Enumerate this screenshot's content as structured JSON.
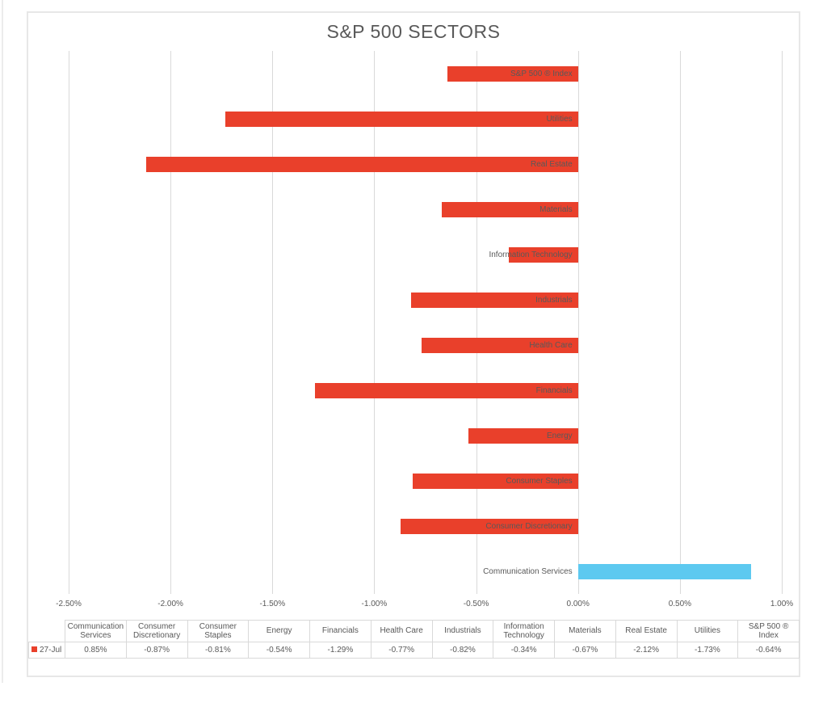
{
  "chart_data": {
    "type": "bar",
    "orientation": "horizontal",
    "title": "S&P 500 SECTORS",
    "xlabel": "",
    "ylabel": "",
    "xlim": [
      -2.5,
      1.0
    ],
    "x_ticks": [
      -2.5,
      -2.0,
      -1.5,
      -1.0,
      -0.5,
      0.0,
      0.5,
      1.0
    ],
    "x_tick_labels": [
      "-2.50%",
      "-2.00%",
      "-1.50%",
      "-1.00%",
      "-0.50%",
      "0.00%",
      "0.50%",
      "1.00%"
    ],
    "grid": true,
    "legend_position": "bottom-data-table",
    "series": [
      {
        "name": "27-Jul",
        "points": [
          {
            "category": "S&P 500 ® Index",
            "value": -0.64,
            "label": "-0.64%"
          },
          {
            "category": "Utilities",
            "value": -1.73,
            "label": "-1.73%"
          },
          {
            "category": "Real Estate",
            "value": -2.12,
            "label": "-2.12%"
          },
          {
            "category": "Materials",
            "value": -0.67,
            "label": "-0.67%"
          },
          {
            "category": "Information Technology",
            "value": -0.34,
            "label": "-0.34%"
          },
          {
            "category": "Industrials",
            "value": -0.82,
            "label": "-0.82%"
          },
          {
            "category": "Health Care",
            "value": -0.77,
            "label": "-0.77%"
          },
          {
            "category": "Financials",
            "value": -1.29,
            "label": "-1.29%"
          },
          {
            "category": "Energy",
            "value": -0.54,
            "label": "-0.54%"
          },
          {
            "category": "Consumer Staples",
            "value": -0.81,
            "label": "-0.81%"
          },
          {
            "category": "Consumer Discretionary",
            "value": -0.87,
            "label": "-0.87%"
          },
          {
            "category": "Communication Services",
            "value": 0.85,
            "label": "0.85%"
          }
        ]
      }
    ]
  },
  "data_table": {
    "legend_row_label": "27-Jul",
    "columns": [
      "Communication Services",
      "Consumer Discretionary",
      "Consumer Staples",
      "Energy",
      "Financials",
      "Health Care",
      "Industrials",
      "Information Technology",
      "Materials",
      "Real Estate",
      "Utilities",
      "S&P 500 ® Index"
    ],
    "values": [
      "0.85%",
      "-0.87%",
      "-0.81%",
      "-0.54%",
      "-1.29%",
      "-0.77%",
      "-0.82%",
      "-0.34%",
      "-0.67%",
      "-2.12%",
      "-1.73%",
      "-0.64%"
    ]
  },
  "colors": {
    "bar_negative": "#e9402b",
    "bar_positive": "#5dc9f0",
    "gridline": "#d9d9d9",
    "table_border": "#d9d9d9",
    "text": "#595959",
    "frame_border": "#e7e7e7"
  }
}
